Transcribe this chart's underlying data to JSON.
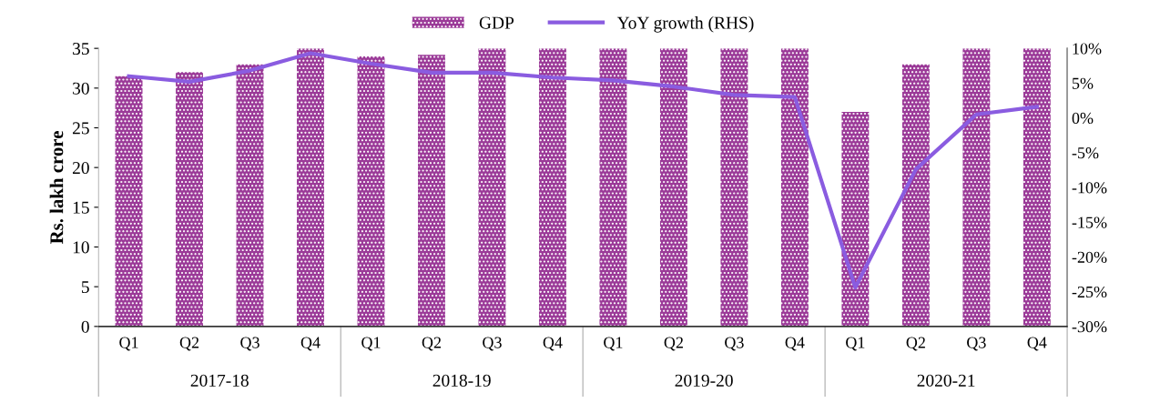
{
  "chart_data": {
    "type": "bar",
    "categories": [
      "Q1",
      "Q2",
      "Q3",
      "Q4",
      "Q1",
      "Q2",
      "Q3",
      "Q4",
      "Q1",
      "Q2",
      "Q3",
      "Q4",
      "Q1",
      "Q2",
      "Q3",
      "Q4"
    ],
    "series": [
      {
        "name": "GDP",
        "color": "#9b3a98",
        "values": [
          31.5,
          32,
          33,
          35,
          34,
          34.2,
          35,
          35,
          35,
          35,
          35,
          35,
          27,
          33,
          35,
          35
        ]
      },
      {
        "name": "YoY growth (RHS)",
        "type": "line",
        "axis": "y2",
        "color": "#8a5ce0",
        "values": [
          6.0,
          5.2,
          6.8,
          9.3,
          7.8,
          6.5,
          6.5,
          5.8,
          5.4,
          4.5,
          3.3,
          3.0,
          -24.4,
          -7.4,
          0.5,
          1.6
        ]
      }
    ],
    "ylabel": "Rs. lakh crore",
    "ylim": [
      0,
      35
    ],
    "yticks": [
      0,
      5,
      10,
      15,
      20,
      25,
      30,
      35
    ],
    "y2lim": [
      -30,
      10
    ],
    "y2ticks": [
      {
        "value": -30,
        "label": "-30%"
      },
      {
        "value": -25,
        "label": "-25%"
      },
      {
        "value": -20,
        "label": "-20%"
      },
      {
        "value": -15,
        "label": "-15%"
      },
      {
        "value": -10,
        "label": "-10%"
      },
      {
        "value": -5,
        "label": "-5%"
      },
      {
        "value": 0,
        "label": "0%"
      },
      {
        "value": 5,
        "label": "5%"
      },
      {
        "value": 10,
        "label": "10%"
      }
    ],
    "annotations": [
      "2017-18",
      "2018-19",
      "2019-20",
      "2020-21"
    ],
    "legend": "top",
    "grid": false,
    "marker": "none",
    "line_style": "solid"
  }
}
